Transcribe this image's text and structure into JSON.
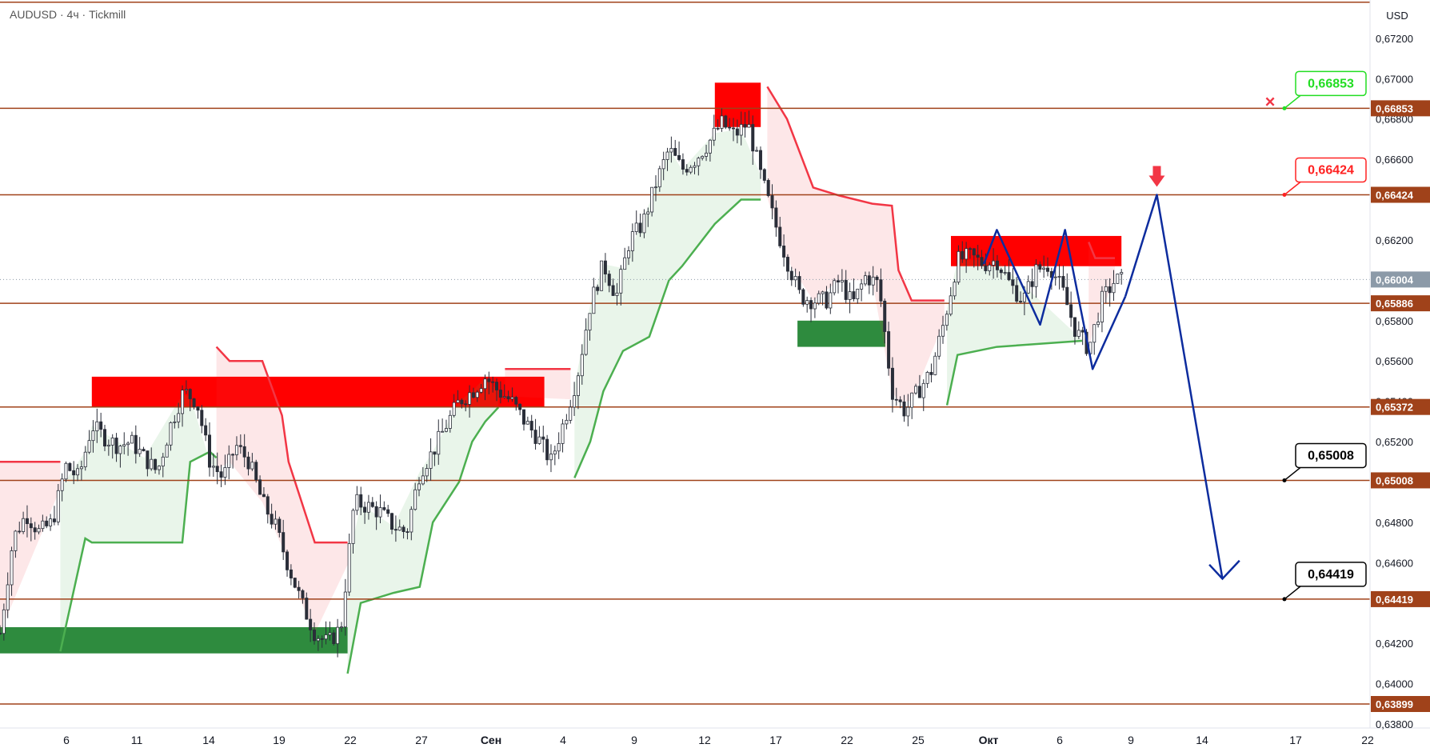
{
  "header": {
    "symbol_label": "AUDUSD · 4ч · Tickmill"
  },
  "price_axis": {
    "currency_label": "USD",
    "ticks": [
      "0,67200",
      "0,67000",
      "0,66800",
      "0,66600",
      "0,66200",
      "0,65800",
      "0,65600",
      "0,65400",
      "0,65200",
      "0,64800",
      "0,64600",
      "0,64200",
      "0,64000",
      "0,63800"
    ]
  },
  "time_axis": {
    "ticks": [
      "6",
      "11",
      "14",
      "19",
      "22",
      "27",
      "Сен",
      "4",
      "9",
      "12",
      "17",
      "22",
      "25",
      "Окт",
      "6",
      "9",
      "14",
      "17",
      "22"
    ]
  },
  "chart_data": {
    "type": "line",
    "ylim": [
      0.6378,
      0.6739
    ],
    "x_range": [
      0,
      100
    ],
    "horizontal_levels": [
      {
        "value": 0.67379,
        "label": ""
      },
      {
        "value": 0.66853,
        "label": "0,66853"
      },
      {
        "value": 0.66424,
        "label": "0,66424"
      },
      {
        "value": 0.65886,
        "label": "0,65886"
      },
      {
        "value": 0.65372,
        "label": "0,65372"
      },
      {
        "value": 0.65008,
        "label": "0,65008"
      },
      {
        "value": 0.64419,
        "label": "0,64419"
      },
      {
        "value": 0.63899,
        "label": "0,63899"
      }
    ],
    "current_price": {
      "value": 0.66004,
      "label": "0,66004"
    },
    "target_labels": [
      {
        "value": 0.66853,
        "label": "0,66853",
        "color": "#22dd22",
        "marker": "×"
      },
      {
        "value": 0.66424,
        "label": "0,66424",
        "color": "#ff2222"
      },
      {
        "value": 0.65008,
        "label": "0,65008",
        "color": "#000000"
      },
      {
        "value": 0.64419,
        "label": "0,64419",
        "color": "#000000"
      }
    ],
    "supply_zones": [
      {
        "x0": 7.0,
        "x1": 41.5,
        "y0": 0.65522,
        "y1": 0.65372
      },
      {
        "x0": 54.5,
        "x1": 58.0,
        "y0": 0.6698,
        "y1": 0.6676
      },
      {
        "x0": 72.5,
        "x1": 85.5,
        "y0": 0.6622,
        "y1": 0.6607
      }
    ],
    "demand_zones": [
      {
        "x0": 0.0,
        "x1": 26.5,
        "y0": 0.6428,
        "y1": 0.6415
      },
      {
        "x0": 60.8,
        "x1": 67.5,
        "y0": 0.658,
        "y1": 0.6567
      }
    ],
    "close_path": [
      [
        0,
        0.6425
      ],
      [
        1,
        0.6472
      ],
      [
        2,
        0.6484
      ],
      [
        3,
        0.6475
      ],
      [
        4,
        0.648
      ],
      [
        5,
        0.6508
      ],
      [
        6,
        0.6502
      ],
      [
        7,
        0.6528
      ],
      [
        8,
        0.6522
      ],
      [
        9,
        0.6518
      ],
      [
        10,
        0.652
      ],
      [
        11,
        0.6512
      ],
      [
        12,
        0.6505
      ],
      [
        13,
        0.6528
      ],
      [
        14,
        0.6545
      ],
      [
        15,
        0.654
      ],
      [
        16,
        0.651
      ],
      [
        17,
        0.6502
      ],
      [
        18,
        0.6518
      ],
      [
        19,
        0.651
      ],
      [
        20,
        0.649
      ],
      [
        21,
        0.6478
      ],
      [
        22,
        0.6458
      ],
      [
        23,
        0.644
      ],
      [
        24,
        0.6425
      ],
      [
        25,
        0.642
      ],
      [
        26,
        0.6428
      ],
      [
        27,
        0.649
      ],
      [
        28,
        0.6488
      ],
      [
        29,
        0.6485
      ],
      [
        30,
        0.6478
      ],
      [
        31,
        0.6475
      ],
      [
        32,
        0.6505
      ],
      [
        33,
        0.6515
      ],
      [
        34,
        0.6528
      ],
      [
        35,
        0.654
      ],
      [
        36,
        0.6545
      ],
      [
        37,
        0.6552
      ],
      [
        38,
        0.6545
      ],
      [
        39,
        0.654
      ],
      [
        40,
        0.653
      ],
      [
        41,
        0.6522
      ],
      [
        42,
        0.651
      ],
      [
        43,
        0.653
      ],
      [
        44,
        0.6552
      ],
      [
        45,
        0.6588
      ],
      [
        46,
        0.6608
      ],
      [
        47,
        0.6592
      ],
      [
        48,
        0.662
      ],
      [
        49,
        0.6628
      ],
      [
        50,
        0.6648
      ],
      [
        51,
        0.6665
      ],
      [
        52,
        0.6655
      ],
      [
        53,
        0.666
      ],
      [
        54,
        0.6668
      ],
      [
        55,
        0.6678
      ],
      [
        56,
        0.6672
      ],
      [
        57,
        0.6678
      ],
      [
        58,
        0.6652
      ],
      [
        59,
        0.663
      ],
      [
        60,
        0.661
      ],
      [
        61,
        0.6592
      ],
      [
        62,
        0.659
      ],
      [
        63,
        0.659
      ],
      [
        64,
        0.66
      ],
      [
        65,
        0.6588
      ],
      [
        66,
        0.6602
      ],
      [
        67,
        0.6598
      ],
      [
        68,
        0.6545
      ],
      [
        69,
        0.6535
      ],
      [
        70,
        0.6545
      ],
      [
        71,
        0.6555
      ],
      [
        72,
        0.658
      ],
      [
        73,
        0.661
      ],
      [
        74,
        0.6612
      ],
      [
        75,
        0.6608
      ],
      [
        76,
        0.661
      ],
      [
        77,
        0.6598
      ],
      [
        78,
        0.659
      ],
      [
        79,
        0.6605
      ],
      [
        80,
        0.6608
      ],
      [
        81,
        0.6595
      ],
      [
        82,
        0.6575
      ],
      [
        83,
        0.6566
      ],
      [
        84,
        0.659
      ],
      [
        85,
        0.66
      ]
    ],
    "pattern_path": [
      [
        75.0,
        0.6608
      ],
      [
        76.0,
        0.6625
      ],
      [
        79.3,
        0.6578
      ],
      [
        81.2,
        0.6625
      ],
      [
        83.3,
        0.6556
      ],
      [
        85.8,
        0.6592
      ]
    ],
    "projection_path": [
      [
        85.8,
        0.6592
      ],
      [
        88.2,
        0.66424
      ],
      [
        93.2,
        0.6452
      ],
      [
        92.2,
        0.6459
      ]
    ],
    "projection_arrow_head": [
      [
        93.2,
        0.6452
      ],
      [
        94.5,
        0.6461
      ]
    ],
    "short_marker": {
      "x": 88.2,
      "value": 0.66424
    }
  }
}
